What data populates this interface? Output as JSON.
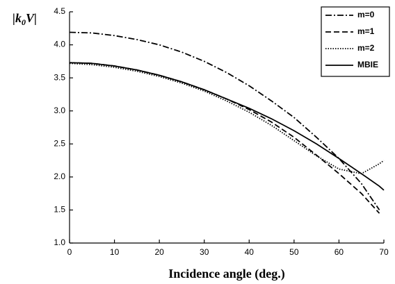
{
  "chart_data": {
    "type": "line",
    "xlabel": "Incidence angle (deg.)",
    "ylabel": [
      "|k",
      "0",
      "V|"
    ],
    "x": [
      0,
      5,
      10,
      15,
      20,
      25,
      30,
      35,
      40,
      45,
      50,
      55,
      60,
      65,
      69,
      70
    ],
    "series": [
      {
        "name": "m=0",
        "color": "#000000",
        "dash": "dashdot",
        "values": [
          4.19,
          4.18,
          4.14,
          4.08,
          4.0,
          3.89,
          3.75,
          3.58,
          3.38,
          3.15,
          2.9,
          2.6,
          2.28,
          1.9,
          1.5,
          null
        ]
      },
      {
        "name": "m=1",
        "color": "#000000",
        "dash": "dashed",
        "values": [
          3.73,
          3.72,
          3.68,
          3.62,
          3.54,
          3.44,
          3.32,
          3.18,
          3.02,
          2.83,
          2.6,
          2.33,
          2.05,
          1.75,
          1.45,
          null
        ]
      },
      {
        "name": "m=2",
        "color": "#000000",
        "dash": "dotted",
        "values": [
          3.72,
          3.7,
          3.66,
          3.6,
          3.52,
          3.42,
          3.3,
          3.15,
          2.98,
          2.78,
          2.55,
          2.32,
          2.12,
          2.05,
          2.2,
          2.25
        ]
      },
      {
        "name": "MBIE",
        "color": "#000000",
        "dash": "solid",
        "values": [
          3.73,
          3.72,
          3.68,
          3.62,
          3.54,
          3.44,
          3.32,
          3.18,
          3.04,
          2.88,
          2.7,
          2.5,
          2.28,
          2.05,
          1.86,
          1.8
        ]
      }
    ],
    "xlim": [
      0,
      70
    ],
    "xticks": [
      0,
      10,
      20,
      30,
      40,
      50,
      60,
      70
    ],
    "ylim": [
      1,
      4.5
    ],
    "yticks": [
      {
        "value": 1,
        "label": "1.0"
      },
      1.5,
      {
        "value": 2,
        "label": "2.0"
      },
      2.5,
      {
        "value": 3,
        "label": "3.0"
      },
      3.5,
      {
        "value": 4,
        "label": "4.0"
      },
      4.5
    ],
    "legend": "upper right"
  }
}
